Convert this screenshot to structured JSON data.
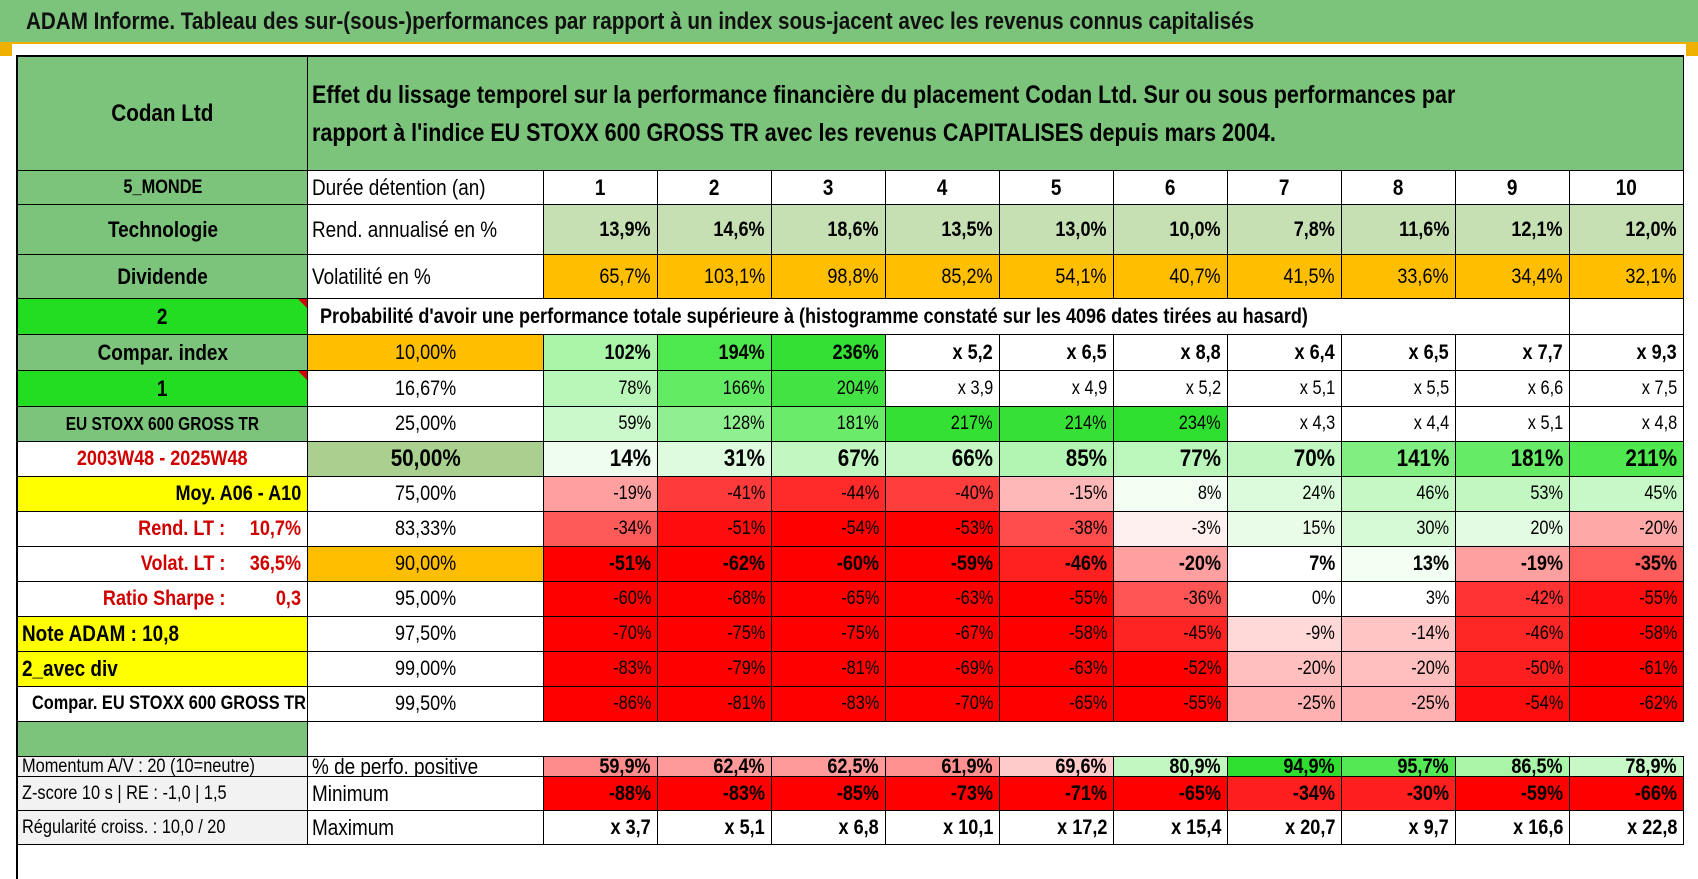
{
  "banner_title": "ADAM Informe. Tableau des sur-(sous-)performances par rapport à un index sous-jacent avec les revenus connus capitalisés",
  "company": "Codan Ltd",
  "description": "Effet du lissage temporel sur la performance financière du placement Codan Ltd. Sur ou sous performances par rapport à l'indice EU STOXX 600 GROSS TR avec les revenus CAPITALISES depuis mars 2004.",
  "left_labels": {
    "region": "5_MONDE",
    "sector": "Technologie",
    "dividend": "Dividende",
    "selector1": "2",
    "compar_index": "Compar. index",
    "selector2": "1",
    "index_name": "EU STOXX 600 GROSS TR",
    "period": "2003W48 - 2025W48",
    "moy": "Moy. A06 - A10",
    "rend_lt_label": "Rend. LT :",
    "rend_lt_value": "10,7%",
    "volat_lt_label": "Volat. LT :",
    "volat_lt_value": "36,5%",
    "sharpe_label": "Ratio Sharpe :",
    "sharpe_value": "0,3",
    "note_adam": "Note ADAM : 10,8",
    "avec_div": "2_avec div",
    "compar_eu": "Compar. EU STOXX 600 GROSS TR"
  },
  "row_labels": {
    "duree": "Durée détention (an)",
    "rend": "Rend. annualisé en %",
    "vol": "Volatilité en %",
    "prob": "Probabilité d'avoir une performance totale supérieure à (histogramme constaté sur les 4096 dates tirées au hasard)"
  },
  "years": [
    "1",
    "2",
    "3",
    "4",
    "5",
    "6",
    "7",
    "8",
    "9",
    "10"
  ],
  "rend_annualise": [
    "13,9%",
    "14,6%",
    "18,6%",
    "13,5%",
    "13,0%",
    "10,0%",
    "7,8%",
    "11,6%",
    "12,1%",
    "12,0%"
  ],
  "volatilite": [
    "65,7%",
    "103,1%",
    "98,8%",
    "85,2%",
    "54,1%",
    "40,7%",
    "41,5%",
    "33,6%",
    "34,4%",
    "32,1%"
  ],
  "percentile_rows": [
    {
      "pct": "10,00%",
      "values": [
        "102%",
        "194%",
        "236%",
        "x 5,2",
        "x 6,5",
        "x 8,8",
        "x 6,4",
        "x 6,5",
        "x 7,7",
        "x 9,3"
      ]
    },
    {
      "pct": "16,67%",
      "values": [
        "78%",
        "166%",
        "204%",
        "x 3,9",
        "x 4,9",
        "x 5,2",
        "x 5,1",
        "x 5,5",
        "x 6,6",
        "x 7,5"
      ]
    },
    {
      "pct": "25,00%",
      "values": [
        "59%",
        "128%",
        "181%",
        "217%",
        "214%",
        "234%",
        "x 4,3",
        "x 4,4",
        "x 5,1",
        "x 4,8"
      ]
    },
    {
      "pct": "50,00%",
      "values": [
        "14%",
        "31%",
        "67%",
        "66%",
        "85%",
        "77%",
        "70%",
        "141%",
        "181%",
        "211%"
      ]
    },
    {
      "pct": "75,00%",
      "values": [
        "-19%",
        "-41%",
        "-44%",
        "-40%",
        "-15%",
        "8%",
        "24%",
        "46%",
        "53%",
        "45%"
      ]
    },
    {
      "pct": "83,33%",
      "values": [
        "-34%",
        "-51%",
        "-54%",
        "-53%",
        "-38%",
        "-3%",
        "15%",
        "30%",
        "20%",
        "-20%"
      ]
    },
    {
      "pct": "90,00%",
      "values": [
        "-51%",
        "-62%",
        "-60%",
        "-59%",
        "-46%",
        "-20%",
        "7%",
        "13%",
        "-19%",
        "-35%"
      ]
    },
    {
      "pct": "95,00%",
      "values": [
        "-60%",
        "-68%",
        "-65%",
        "-63%",
        "-55%",
        "-36%",
        "0%",
        "3%",
        "-42%",
        "-55%"
      ]
    },
    {
      "pct": "97,50%",
      "values": [
        "-70%",
        "-75%",
        "-75%",
        "-67%",
        "-58%",
        "-45%",
        "-9%",
        "-14%",
        "-46%",
        "-58%"
      ]
    },
    {
      "pct": "99,00%",
      "values": [
        "-83%",
        "-79%",
        "-81%",
        "-69%",
        "-63%",
        "-52%",
        "-20%",
        "-20%",
        "-50%",
        "-61%"
      ]
    },
    {
      "pct": "99,50%",
      "values": [
        "-86%",
        "-81%",
        "-83%",
        "-70%",
        "-65%",
        "-55%",
        "-25%",
        "-25%",
        "-54%",
        "-62%"
      ]
    }
  ],
  "bottom_rows": [
    {
      "left": "Momentum A/V : 20 (10=neutre)",
      "label": "% de perfo. positive",
      "values": [
        "59,9%",
        "62,4%",
        "62,5%",
        "61,9%",
        "69,6%",
        "80,9%",
        "94,9%",
        "95,7%",
        "86,5%",
        "78,9%"
      ]
    },
    {
      "left": "Z-score 10 s | RE : -1,0 | 1,5",
      "label": "Minimum",
      "values": [
        "-88%",
        "-83%",
        "-85%",
        "-73%",
        "-71%",
        "-65%",
        "-34%",
        "-30%",
        "-59%",
        "-66%"
      ]
    },
    {
      "left": "Régularité croiss. : 10,0 / 20",
      "label": "Maximum",
      "values": [
        "x 3,7",
        "x 5,1",
        "x 6,8",
        "x 10,1",
        "x 17,2",
        "x 15,4",
        "x 20,7",
        "x 9,7",
        "x 16,6",
        "x 22,8"
      ]
    }
  ],
  "colors": {
    "header_green": "#7cc47c",
    "lime": "#22dd22",
    "yellow": "#ffff00",
    "orange": "#ffbf00",
    "red_text": "#d00000"
  },
  "cell_colors": {
    "rend": [
      "#c6e0b4",
      "#c6e0b4",
      "#c6e0b4",
      "#c6e0b4",
      "#c6e0b4",
      "#c6e0b4",
      "#c6e0b4",
      "#c6e0b4",
      "#c6e0b4",
      "#c6e0b4"
    ],
    "vol": [
      "#ffbf00",
      "#ffbf00",
      "#ffbf00",
      "#ffbf00",
      "#ffbf00",
      "#ffbf00",
      "#ffbf00",
      "#ffbf00",
      "#ffbf00",
      "#ffbf00"
    ],
    "percentile": [
      [
        "#a8f5a8",
        "#4de84d",
        "#33e033",
        "#ffffff",
        "#ffffff",
        "#ffffff",
        "#ffffff",
        "#ffffff",
        "#ffffff",
        "#ffffff"
      ],
      [
        "#b9f7b9",
        "#63eb63",
        "#44e344",
        "#ffffff",
        "#ffffff",
        "#ffffff",
        "#ffffff",
        "#ffffff",
        "#ffffff",
        "#ffffff"
      ],
      [
        "#cbf9cb",
        "#8ff08f",
        "#6aec6a",
        "#33e033",
        "#36e036",
        "#2fdf2f",
        "#ffffff",
        "#ffffff",
        "#ffffff",
        "#ffffff"
      ],
      [
        "#effdef",
        "#dffbdf",
        "#c2f7c2",
        "#c4f7c4",
        "#b2f5b2",
        "#bbf6bb",
        "#c0f7c0",
        "#80ee80",
        "#66eb66",
        "#4fe84f"
      ],
      [
        "#ff9f9f",
        "#ff3a3a",
        "#ff2a2a",
        "#ff3d3d",
        "#ffb8b8",
        "#f2fef2",
        "#dcfbdc",
        "#c6f8c6",
        "#c2f7c2",
        "#c8f8c8"
      ],
      [
        "#ff5a5a",
        "#ff0d0d",
        "#ff0000",
        "#ff0000",
        "#ff4d4d",
        "#fff0f0",
        "#e8fce8",
        "#d6fad6",
        "#e2fbe2",
        "#ffa8a8"
      ],
      [
        "#ff0000",
        "#ff0000",
        "#ff0000",
        "#ff0000",
        "#ff2020",
        "#ff9f9f",
        "#ffffff",
        "#f2fef2",
        "#ffa0a0",
        "#ff5c5c"
      ],
      [
        "#ff0000",
        "#ff0000",
        "#ff0000",
        "#ff0000",
        "#ff0000",
        "#ff5555",
        "#ffffff",
        "#ffffff",
        "#ff3333",
        "#ff0d0d"
      ],
      [
        "#ff0000",
        "#ff0000",
        "#ff0000",
        "#ff0000",
        "#ff0000",
        "#ff2424",
        "#ffd8d8",
        "#ffc4c4",
        "#ff2626",
        "#ff0000"
      ],
      [
        "#ff0000",
        "#ff0000",
        "#ff0000",
        "#ff0000",
        "#ff0000",
        "#ff0000",
        "#ffbfbf",
        "#ffbfbf",
        "#ff1f1f",
        "#ff0000"
      ],
      [
        "#ff0000",
        "#ff0000",
        "#ff0000",
        "#ff0000",
        "#ff0000",
        "#ff0000",
        "#ffb0b0",
        "#ffb0b0",
        "#ff0d0d",
        "#ff0000"
      ]
    ],
    "bottom": [
      [
        "#ff8c8c",
        "#ff9a9a",
        "#ff9a9a",
        "#ff9090",
        "#ffcaca",
        "#c2f7c2",
        "#2fdf2f",
        "#55e855",
        "#a8f5a8",
        "#c8f8c8"
      ],
      [
        "#ff0000",
        "#ff0000",
        "#ff0000",
        "#ff0000",
        "#ff0000",
        "#ff0000",
        "#ff1f1f",
        "#ff1f1f",
        "#ff0000",
        "#ff0000"
      ],
      [
        "#ffffff",
        "#ffffff",
        "#ffffff",
        "#ffffff",
        "#ffffff",
        "#ffffff",
        "#ffffff",
        "#ffffff",
        "#ffffff",
        "#ffffff"
      ]
    ]
  }
}
